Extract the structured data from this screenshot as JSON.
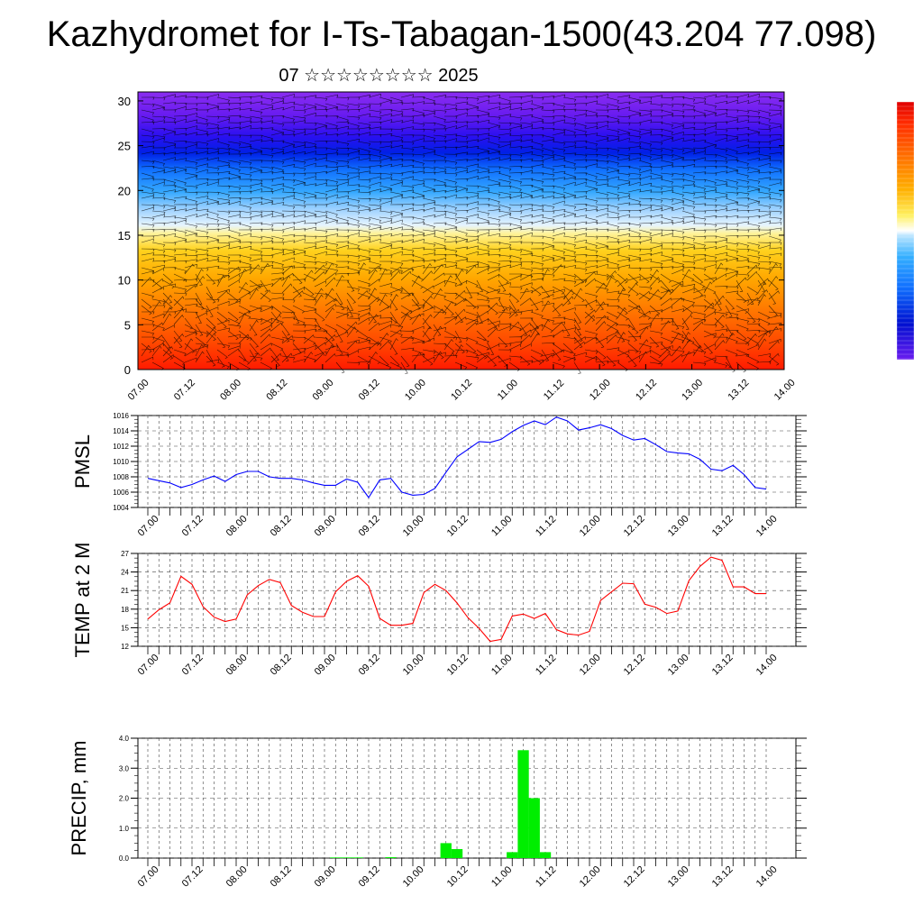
{
  "title": "Kazhydromet for I-Ts-Tabagan-1500(43.204 77.098)",
  "subtitle": "07 ☆☆☆☆☆☆☆☆ 2025",
  "time_labels": [
    "07.00",
    "07.12",
    "08.00",
    "08.12",
    "09.00",
    "09.12",
    "10.00",
    "10.12",
    "11.00",
    "11.12",
    "12.00",
    "12.12",
    "13.00",
    "13.12",
    "14.00"
  ],
  "colors": {
    "pmsl": "#0000ff",
    "temp": "#ff0000",
    "precip": "#00ee00",
    "grid": "#444444"
  },
  "chart_data": [
    {
      "type": "heatmap",
      "title": "",
      "ylabel": "",
      "y_ticks": [
        "0",
        "5",
        "10",
        "15",
        "20",
        "25",
        "30"
      ],
      "ylim": [
        0,
        31
      ],
      "x_range": [
        0,
        14
      ],
      "colorbar": "red (low levels) → orange → yellow → light blue → blue → violet (top)",
      "grid": false,
      "overlay": "wind barbs"
    },
    {
      "type": "line",
      "ylabel": "PMSL",
      "ylim": [
        1004,
        1016
      ],
      "y_ticks": [
        "1004",
        "1006",
        "1008",
        "1010",
        "1012",
        "1014",
        "1016"
      ],
      "grid": true,
      "series": [
        {
          "x": [
            0,
            1,
            2,
            3,
            4,
            5,
            6,
            7,
            8,
            9,
            10,
            11,
            12,
            13,
            14,
            15,
            16,
            17,
            18,
            19,
            20,
            21,
            22,
            23,
            24,
            25,
            26,
            27,
            28,
            29,
            30,
            31,
            32,
            33,
            34,
            35,
            36,
            37,
            38,
            39,
            40,
            41,
            42,
            43,
            44,
            45,
            46,
            47,
            48,
            49,
            50,
            51,
            52,
            53,
            54,
            55,
            56
          ],
          "values": [
            1007.8,
            1007.5,
            1007.2,
            1006.6,
            1007.0,
            1007.6,
            1008.1,
            1007.4,
            1008.3,
            1008.7,
            1008.7,
            1008.0,
            1007.8,
            1007.8,
            1007.6,
            1007.2,
            1006.9,
            1006.9,
            1007.7,
            1007.3,
            1005.3,
            1007.6,
            1007.8,
            1006.0,
            1005.6,
            1005.7,
            1006.5,
            1008.6,
            1010.6,
            1011.6,
            1012.6,
            1012.5,
            1012.9,
            1013.9,
            1014.7,
            1015.3,
            1014.8,
            1015.8,
            1015.3,
            1014.1,
            1014.4,
            1014.8,
            1014.3,
            1013.4,
            1012.8,
            1013.0,
            1012.2,
            1011.3,
            1011.1,
            1011.0,
            1010.3,
            1009.0,
            1008.8,
            1009.5,
            1008.3,
            1006.6,
            1006.4
          ]
        }
      ]
    },
    {
      "type": "line",
      "ylabel": "TEMP at 2 M",
      "ylim": [
        12,
        27
      ],
      "y_ticks": [
        "12",
        "15",
        "18",
        "21",
        "24",
        "27"
      ],
      "grid": true,
      "series": [
        {
          "x": [
            0,
            1,
            2,
            3,
            4,
            5,
            6,
            7,
            8,
            9,
            10,
            11,
            12,
            13,
            14,
            15,
            16,
            17,
            18,
            19,
            20,
            21,
            22,
            23,
            24,
            25,
            26,
            27,
            28,
            29,
            30,
            31,
            32,
            33,
            34,
            35,
            36,
            37,
            38,
            39,
            40,
            41,
            42,
            43,
            44,
            45,
            46,
            47,
            48,
            49,
            50,
            51,
            52,
            53,
            54,
            55,
            56
          ],
          "values": [
            16.4,
            17.9,
            19.0,
            23.3,
            22.0,
            18.4,
            16.7,
            16.0,
            16.4,
            20.3,
            21.8,
            22.8,
            22.3,
            18.6,
            17.5,
            16.8,
            16.8,
            20.8,
            22.5,
            23.4,
            21.7,
            16.5,
            15.4,
            15.4,
            15.7,
            20.7,
            22.0,
            21.0,
            19.0,
            16.6,
            14.9,
            12.8,
            13.1,
            16.9,
            17.2,
            16.5,
            17.3,
            14.7,
            14.0,
            13.8,
            14.4,
            19.4,
            20.8,
            22.2,
            22.1,
            18.8,
            18.3,
            17.3,
            17.7,
            22.6,
            24.9,
            26.4,
            25.9,
            21.6,
            21.6,
            20.5,
            20.5
          ]
        }
      ]
    },
    {
      "type": "bar",
      "ylabel": "PRECIP, mm",
      "ylim": [
        0,
        4
      ],
      "y_ticks": [
        "0.0",
        "1.0",
        "2.0",
        "3.0",
        "4.0"
      ],
      "grid": true,
      "series": [
        {
          "x": [
            17,
            18,
            19,
            22,
            27,
            28,
            33,
            34,
            35,
            36
          ],
          "values": [
            0.02,
            0.02,
            0.02,
            0.03,
            0.5,
            0.3,
            0.2,
            3.6,
            2.0,
            0.2
          ]
        }
      ]
    }
  ]
}
